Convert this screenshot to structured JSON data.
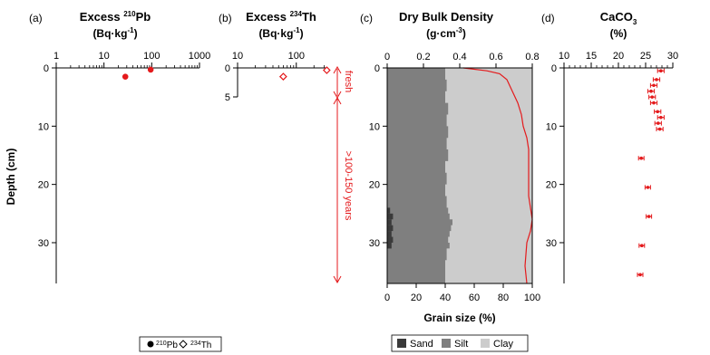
{
  "colors": {
    "red": "#e41a1c",
    "sand": "#3a3a3a",
    "silt": "#7f7f7f",
    "clay": "#cccccc",
    "axis": "#000000"
  },
  "legend_left": {
    "pb_label": "210Pb",
    "th_label": "234Th"
  },
  "legend_right": {
    "sand": "Sand",
    "silt": "Silt",
    "clay": "Clay"
  },
  "chart_data": [
    {
      "panel_label": "(a)",
      "type": "scatter",
      "title": "Excess 210Pb",
      "title_units": "(Bq·kg-1)",
      "ylabel": "Depth (cm)",
      "x_scale": "log",
      "xlim": [
        1,
        1000
      ],
      "x_ticks": [
        "1",
        "10",
        "100",
        "1000"
      ],
      "ylim": [
        0,
        37
      ],
      "y_ticks": [
        "0",
        "10",
        "20",
        "30"
      ],
      "series": [
        {
          "name": "210Pb",
          "marker": "circle-filled",
          "points": [
            {
              "x": 95,
              "y": 0.3
            },
            {
              "x": 28,
              "y": 1.5,
              "xerr": 3
            }
          ]
        }
      ]
    },
    {
      "panel_label": "(b)",
      "type": "scatter",
      "title": "Excess 234Th",
      "title_units": "(Bq·kg-1)",
      "x_scale": "log",
      "xlim": [
        10,
        350
      ],
      "x_ticks": [
        "10",
        "100"
      ],
      "ylim": [
        0,
        5
      ],
      "y_ticks": [
        "0",
        "5"
      ],
      "series": [
        {
          "name": "234Th",
          "marker": "diamond-open",
          "points": [
            {
              "x": 60,
              "y": 1.5,
              "xerr": 8
            },
            {
              "x": 330,
              "y": 0.4,
              "xerr": 25
            }
          ]
        }
      ],
      "annotations": {
        "fresh": "fresh",
        "old": ">100-150 years"
      }
    },
    {
      "panel_label": "(c)",
      "type": "area",
      "title": "Dry Bulk Density",
      "title_units": "(g·cm-3)",
      "xlabel": "Grain size (%)",
      "top_xlim": [
        0,
        0.8
      ],
      "top_x_ticks": [
        "0",
        "0.2",
        "0.4",
        "0.6",
        "0.8"
      ],
      "bottom_xlim": [
        0,
        100
      ],
      "bottom_x_ticks": [
        "0",
        "20",
        "40",
        "60",
        "80",
        "100"
      ],
      "ylim": [
        0,
        37
      ],
      "y_ticks": [
        "0",
        "10",
        "20",
        "30"
      ],
      "grain_size": [
        {
          "depth": 0,
          "sand": 0,
          "silt_cum": 40
        },
        {
          "depth": 2,
          "sand": 0,
          "silt_cum": 41
        },
        {
          "depth": 4,
          "sand": 0,
          "silt_cum": 40
        },
        {
          "depth": 6,
          "sand": 0,
          "silt_cum": 42
        },
        {
          "depth": 8,
          "sand": 0,
          "silt_cum": 41
        },
        {
          "depth": 10,
          "sand": 0,
          "silt_cum": 42
        },
        {
          "depth": 12,
          "sand": 0,
          "silt_cum": 41
        },
        {
          "depth": 14,
          "sand": 0,
          "silt_cum": 42
        },
        {
          "depth": 16,
          "sand": 0,
          "silt_cum": 40
        },
        {
          "depth": 18,
          "sand": 0,
          "silt_cum": 41
        },
        {
          "depth": 20,
          "sand": 0,
          "silt_cum": 40
        },
        {
          "depth": 22,
          "sand": 0,
          "silt_cum": 41
        },
        {
          "depth": 24,
          "sand": 2,
          "silt_cum": 42
        },
        {
          "depth": 25,
          "sand": 4,
          "silt_cum": 43
        },
        {
          "depth": 26,
          "sand": 3,
          "silt_cum": 45
        },
        {
          "depth": 27,
          "sand": 4,
          "silt_cum": 44
        },
        {
          "depth": 28,
          "sand": 3,
          "silt_cum": 43
        },
        {
          "depth": 29,
          "sand": 4,
          "silt_cum": 42
        },
        {
          "depth": 30,
          "sand": 3,
          "silt_cum": 43
        },
        {
          "depth": 31,
          "sand": 0,
          "silt_cum": 41
        },
        {
          "depth": 33,
          "sand": 0,
          "silt_cum": 40
        },
        {
          "depth": 35,
          "sand": 0,
          "silt_cum": 40
        },
        {
          "depth": 37,
          "sand": 0,
          "silt_cum": 40
        }
      ],
      "density": [
        {
          "depth": 0,
          "x": 0.42
        },
        {
          "depth": 0.5,
          "x": 0.55
        },
        {
          "depth": 1,
          "x": 0.62
        },
        {
          "depth": 2,
          "x": 0.66
        },
        {
          "depth": 4,
          "x": 0.69
        },
        {
          "depth": 6,
          "x": 0.72
        },
        {
          "depth": 8,
          "x": 0.74
        },
        {
          "depth": 10,
          "x": 0.75
        },
        {
          "depth": 12,
          "x": 0.77
        },
        {
          "depth": 14,
          "x": 0.78
        },
        {
          "depth": 18,
          "x": 0.78
        },
        {
          "depth": 22,
          "x": 0.78
        },
        {
          "depth": 24,
          "x": 0.79
        },
        {
          "depth": 26,
          "x": 0.8
        },
        {
          "depth": 28,
          "x": 0.79
        },
        {
          "depth": 30,
          "x": 0.77
        },
        {
          "depth": 34,
          "x": 0.76
        },
        {
          "depth": 37,
          "x": 0.77
        }
      ]
    },
    {
      "panel_label": "(d)",
      "type": "scatter",
      "title": "CaCO3",
      "title_units": "(%)",
      "xlim": [
        10,
        30
      ],
      "x_ticks": [
        "10",
        "15",
        "20",
        "25",
        "30"
      ],
      "ylim": [
        0,
        37
      ],
      "y_ticks": [
        "0",
        "10",
        "20",
        "30"
      ],
      "series": [
        {
          "name": "CaCO3",
          "marker": "circle-filled",
          "points": [
            {
              "x": 27.8,
              "y": 0.5,
              "xerr": 0.6
            },
            {
              "x": 27.0,
              "y": 2.0,
              "xerr": 0.6
            },
            {
              "x": 26.5,
              "y": 3.0,
              "xerr": 0.6
            },
            {
              "x": 26.0,
              "y": 4.0,
              "xerr": 0.6
            },
            {
              "x": 26.2,
              "y": 5.0,
              "xerr": 0.6
            },
            {
              "x": 26.5,
              "y": 6.0,
              "xerr": 0.6
            },
            {
              "x": 27.2,
              "y": 7.5,
              "xerr": 0.6
            },
            {
              "x": 27.8,
              "y": 8.5,
              "xerr": 0.6
            },
            {
              "x": 27.3,
              "y": 9.5,
              "xerr": 0.6
            },
            {
              "x": 27.6,
              "y": 10.5,
              "xerr": 0.6
            },
            {
              "x": 24.2,
              "y": 15.5,
              "xerr": 0.5
            },
            {
              "x": 25.4,
              "y": 20.5,
              "xerr": 0.5
            },
            {
              "x": 25.6,
              "y": 25.5,
              "xerr": 0.5
            },
            {
              "x": 24.3,
              "y": 30.5,
              "xerr": 0.5
            },
            {
              "x": 24.0,
              "y": 35.5,
              "xerr": 0.5
            }
          ]
        }
      ]
    }
  ]
}
